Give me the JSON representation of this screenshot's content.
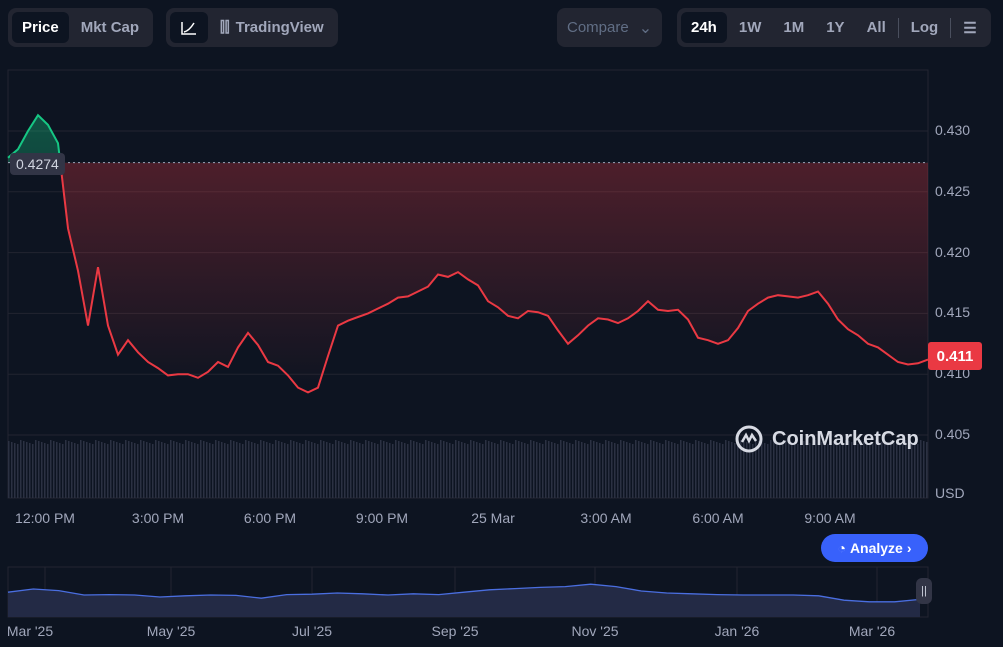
{
  "toolbar": {
    "price": "Price",
    "mktcap": "Mkt Cap",
    "tradingview": "TradingView",
    "compare": "Compare",
    "ranges": [
      "24h",
      "1W",
      "1M",
      "1Y",
      "All"
    ],
    "log": "Log"
  },
  "chart_data": {
    "type": "line",
    "y_ticks": [
      "0.430",
      "0.425",
      "0.420",
      "0.415",
      "0.410",
      "0.405"
    ],
    "ylim": [
      0.405,
      0.43
    ],
    "currency": "USD",
    "x_ticks": [
      "12:00 PM",
      "3:00 PM",
      "6:00 PM",
      "9:00 PM",
      "25 Mar",
      "3:00 AM",
      "6:00 AM",
      "9:00 AM"
    ],
    "reference_price": 0.4274,
    "reference_label": "0.4274",
    "current_price_label": "0.411",
    "up_color": "#16c784",
    "down_color": "#ea3943",
    "values": [
      0.4278,
      0.4285,
      0.43,
      0.4313,
      0.4305,
      0.429,
      0.422,
      0.4185,
      0.414,
      0.4188,
      0.414,
      0.4116,
      0.4128,
      0.4118,
      0.411,
      0.4105,
      0.4099,
      0.41,
      0.41,
      0.4097,
      0.4102,
      0.411,
      0.4106,
      0.4122,
      0.4134,
      0.4124,
      0.411,
      0.4107,
      0.4099,
      0.4089,
      0.4085,
      0.4089,
      0.4115,
      0.414,
      0.4144,
      0.4147,
      0.415,
      0.4154,
      0.4158,
      0.4163,
      0.4164,
      0.4168,
      0.4172,
      0.4182,
      0.418,
      0.4184,
      0.4178,
      0.4173,
      0.416,
      0.4155,
      0.4148,
      0.4146,
      0.4152,
      0.4151,
      0.4148,
      0.4136,
      0.4125,
      0.4132,
      0.414,
      0.4146,
      0.4145,
      0.4142,
      0.4146,
      0.4152,
      0.416,
      0.4153,
      0.4152,
      0.4153,
      0.4145,
      0.413,
      0.4128,
      0.4125,
      0.4128,
      0.4138,
      0.4152,
      0.4158,
      0.4163,
      0.4165,
      0.4164,
      0.4163,
      0.4165,
      0.4168,
      0.4158,
      0.4145,
      0.4137,
      0.4132,
      0.4125,
      0.4122,
      0.4116,
      0.411,
      0.4108,
      0.4109,
      0.4112
    ],
    "navigator": {
      "x_ticks": [
        "Mar '25",
        "May '25",
        "Jul '25",
        "Sep '25",
        "Nov '25",
        "Jan '26",
        "Mar '26"
      ],
      "values": [
        0.62,
        0.7,
        0.66,
        0.55,
        0.56,
        0.55,
        0.5,
        0.53,
        0.55,
        0.54,
        0.47,
        0.56,
        0.57,
        0.6,
        0.58,
        0.55,
        0.58,
        0.56,
        0.62,
        0.68,
        0.71,
        0.74,
        0.76,
        0.82,
        0.76,
        0.65,
        0.6,
        0.58,
        0.56,
        0.55,
        0.55,
        0.55,
        0.53,
        0.42,
        0.38,
        0.38,
        0.44
      ]
    }
  },
  "watermark": "CoinMarketCap",
  "analyze": "Analyze"
}
